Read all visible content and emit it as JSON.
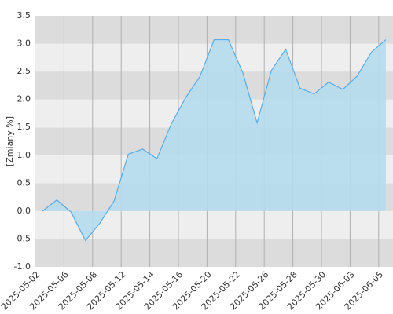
{
  "chart_data": {
    "type": "area",
    "y_label": "[Zmiany %]",
    "categories": [
      "2025-05-02",
      null,
      "2025-05-06",
      null,
      "2025-05-08",
      null,
      "2025-05-12",
      null,
      "2025-05-14",
      null,
      "2025-05-16",
      null,
      "2025-05-20",
      null,
      "2025-05-22",
      null,
      "2025-05-26",
      null,
      "2025-05-28",
      null,
      "2025-05-30",
      null,
      "2025-06-03",
      null,
      "2025-06-05"
    ],
    "values": [
      0.0,
      0.2,
      -0.02,
      -0.53,
      -0.22,
      0.18,
      1.02,
      1.11,
      0.94,
      1.56,
      2.03,
      2.41,
      3.07,
      3.07,
      2.48,
      1.58,
      2.52,
      2.9,
      2.2,
      2.1,
      2.31,
      2.18,
      2.42,
      2.85,
      3.07
    ],
    "color": "#5aace8",
    "fill": "#b5dcee",
    "ylim": [
      -1.0,
      3.5
    ],
    "yticks": [
      {
        "value": -1,
        "label": "-1.0"
      },
      {
        "value": -0.5,
        "label": "-0.5"
      },
      {
        "value": 0,
        "label": "0.0"
      },
      {
        "value": 0.5,
        "label": "0.5"
      },
      {
        "value": 1,
        "label": "1.0"
      },
      {
        "value": 1.5,
        "label": "1.5"
      },
      {
        "value": 2,
        "label": "2.0"
      },
      {
        "value": 2.5,
        "label": "2.5"
      },
      {
        "value": 3,
        "label": "3.0"
      },
      {
        "value": 3.5,
        "label": "3.5"
      }
    ],
    "grid": true
  }
}
